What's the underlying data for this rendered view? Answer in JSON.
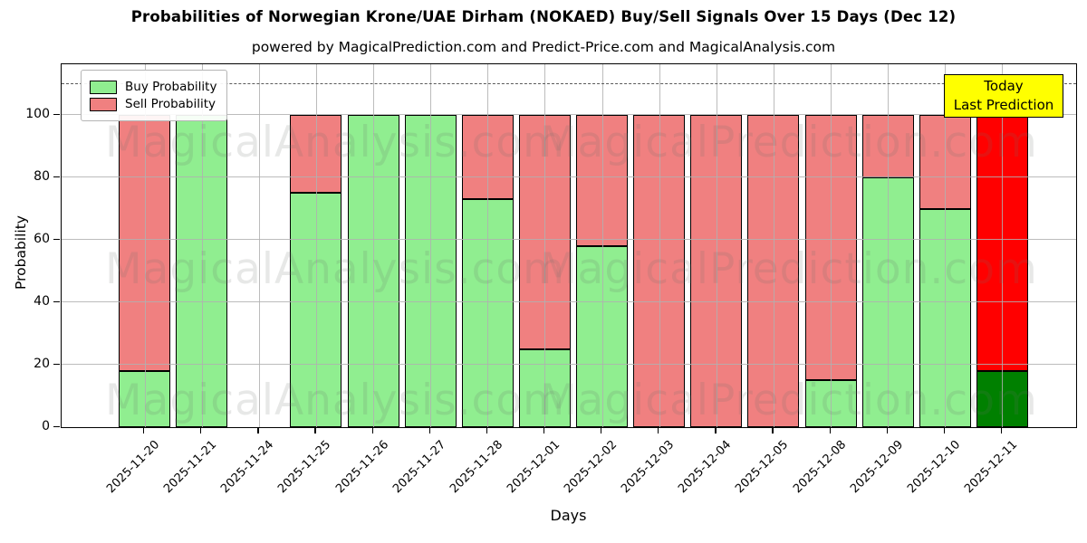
{
  "title": "Probabilities of Norwegian Krone/UAE Dirham (NOKAED) Buy/Sell Signals Over 15 Days (Dec 12)",
  "subtitle": "powered by MagicalPrediction.com and Predict-Price.com and MagicalAnalysis.com",
  "axes": {
    "ylabel": "Probability",
    "xlabel": "Days",
    "yticks": [
      0,
      20,
      40,
      60,
      80,
      100
    ],
    "ylim": [
      0,
      116.3
    ],
    "grid": true,
    "dashed_reference_line_y": 110
  },
  "legend": {
    "position": "upper-left",
    "items": [
      {
        "label": "Buy Probability",
        "color": "#90EE90"
      },
      {
        "label": "Sell Probability",
        "color": "#F08080"
      }
    ]
  },
  "annotation_box": {
    "lines": [
      "Today",
      "Last Prediction"
    ],
    "bg_color": "#FFFF00",
    "border_color": "#000000",
    "position": "upper-right"
  },
  "watermarks": {
    "left_text": "MagicalAnalysis.com",
    "right_text": "MagicalPrediction.com",
    "rows": 3
  },
  "colors": {
    "buy": "#90EE90",
    "sell": "#F08080",
    "today_buy": "#008000",
    "today_sell": "#FF0000",
    "bar_edge": "#000000",
    "grid": "#b0b0b0",
    "annotation_bg": "#FFFF00"
  },
  "chart_data": {
    "type": "bar",
    "stacked": true,
    "categories": [
      "2025-11-20",
      "2025-11-21",
      "2025-11-24",
      "2025-11-25",
      "2025-11-26",
      "2025-11-27",
      "2025-11-28",
      "2025-12-01",
      "2025-12-02",
      "2025-12-03",
      "2025-12-04",
      "2025-12-05",
      "2025-12-08",
      "2025-12-09",
      "2025-12-10",
      "2025-12-11"
    ],
    "series": [
      {
        "name": "Buy Probability",
        "color": "#90EE90",
        "values": [
          18,
          100,
          null,
          75,
          100,
          100,
          73,
          25,
          58,
          0,
          0,
          0,
          15,
          80,
          70,
          18
        ]
      },
      {
        "name": "Sell Probability",
        "color": "#F08080",
        "values": [
          82,
          0,
          null,
          25,
          0,
          0,
          27,
          75,
          42,
          100,
          100,
          100,
          85,
          20,
          30,
          82
        ]
      }
    ],
    "today_index": 15,
    "today_colors": {
      "buy": "#008000",
      "sell": "#FF0000"
    },
    "title": "Probabilities of Norwegian Krone/UAE Dirham (NOKAED) Buy/Sell Signals Over 15 Days (Dec 12)",
    "xlabel": "Days",
    "ylabel": "Probability",
    "ylim": [
      0,
      116.3
    ]
  }
}
